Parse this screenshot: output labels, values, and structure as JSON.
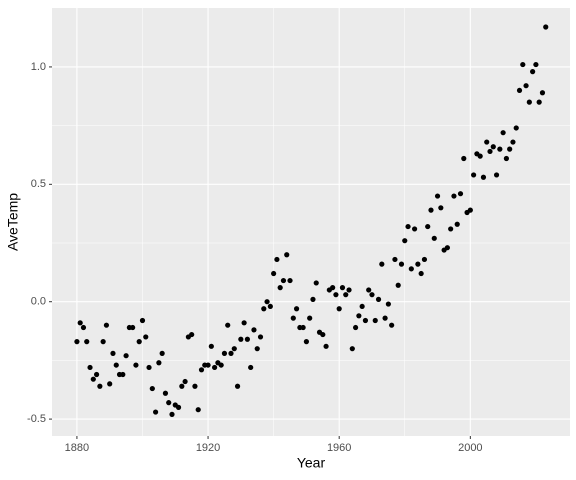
{
  "chart_data": {
    "type": "scatter",
    "x_label": "Year",
    "y_label": "AveTemp",
    "x": [
      1880,
      1881,
      1882,
      1883,
      1884,
      1885,
      1886,
      1887,
      1888,
      1889,
      1890,
      1891,
      1892,
      1893,
      1894,
      1895,
      1896,
      1897,
      1898,
      1899,
      1900,
      1901,
      1902,
      1903,
      1904,
      1905,
      1906,
      1907,
      1908,
      1909,
      1910,
      1911,
      1912,
      1913,
      1914,
      1915,
      1916,
      1917,
      1918,
      1919,
      1920,
      1921,
      1922,
      1923,
      1924,
      1925,
      1926,
      1927,
      1928,
      1929,
      1930,
      1931,
      1932,
      1933,
      1934,
      1935,
      1936,
      1937,
      1938,
      1939,
      1940,
      1941,
      1942,
      1943,
      1944,
      1945,
      1946,
      1947,
      1948,
      1949,
      1950,
      1951,
      1952,
      1953,
      1954,
      1955,
      1956,
      1957,
      1958,
      1959,
      1960,
      1961,
      1962,
      1963,
      1964,
      1965,
      1966,
      1967,
      1968,
      1969,
      1970,
      1971,
      1972,
      1973,
      1974,
      1975,
      1976,
      1977,
      1978,
      1979,
      1980,
      1981,
      1982,
      1983,
      1984,
      1985,
      1986,
      1987,
      1988,
      1989,
      1990,
      1991,
      1992,
      1993,
      1994,
      1995,
      1996,
      1997,
      1998,
      1999,
      2000,
      2001,
      2002,
      2003,
      2004,
      2005,
      2006,
      2007,
      2008,
      2009,
      2010,
      2011,
      2012,
      2013,
      2014,
      2015,
      2016,
      2017,
      2018,
      2019,
      2020,
      2021,
      2022,
      2023
    ],
    "values": [
      -0.17,
      -0.09,
      -0.11,
      -0.17,
      -0.28,
      -0.33,
      -0.31,
      -0.36,
      -0.17,
      -0.1,
      -0.35,
      -0.22,
      -0.27,
      -0.31,
      -0.31,
      -0.23,
      -0.11,
      -0.11,
      -0.27,
      -0.17,
      -0.08,
      -0.15,
      -0.28,
      -0.37,
      -0.47,
      -0.26,
      -0.22,
      -0.39,
      -0.43,
      -0.48,
      -0.44,
      -0.45,
      -0.36,
      -0.34,
      -0.15,
      -0.14,
      -0.36,
      -0.46,
      -0.29,
      -0.27,
      -0.27,
      -0.19,
      -0.28,
      -0.26,
      -0.27,
      -0.22,
      -0.1,
      -0.22,
      -0.2,
      -0.36,
      -0.16,
      -0.09,
      -0.16,
      -0.28,
      -0.12,
      -0.2,
      -0.15,
      -0.03,
      0.0,
      -0.02,
      0.12,
      0.18,
      0.06,
      0.09,
      0.2,
      0.09,
      -0.07,
      -0.03,
      -0.11,
      -0.11,
      -0.17,
      -0.07,
      0.01,
      0.08,
      -0.13,
      -0.14,
      -0.19,
      0.05,
      0.06,
      0.03,
      -0.03,
      0.06,
      0.03,
      0.05,
      -0.2,
      -0.11,
      -0.06,
      -0.02,
      -0.08,
      0.05,
      0.03,
      -0.08,
      0.01,
      0.16,
      -0.07,
      -0.01,
      -0.1,
      0.18,
      0.07,
      0.16,
      0.26,
      0.32,
      0.14,
      0.31,
      0.16,
      0.12,
      0.18,
      0.32,
      0.39,
      0.27,
      0.45,
      0.4,
      0.22,
      0.23,
      0.31,
      0.45,
      0.33,
      0.46,
      0.61,
      0.38,
      0.39,
      0.54,
      0.63,
      0.62,
      0.53,
      0.68,
      0.64,
      0.66,
      0.54,
      0.65,
      0.72,
      0.61,
      0.65,
      0.68,
      0.74,
      0.9,
      1.01,
      0.92,
      0.85,
      0.98,
      1.01,
      0.85,
      0.89,
      1.17
    ],
    "color": "#000000",
    "xlim": [
      1872.4,
      2030.4
    ],
    "xticks": [
      1880,
      1920,
      1960,
      2000
    ],
    "ylim": [
      -0.572,
      1.251
    ],
    "yticks": [
      {
        "value": -0.5,
        "label": "-0.5"
      },
      {
        "value": 0,
        "label": "0.0"
      },
      {
        "value": 0.5,
        "label": "0.5"
      },
      {
        "value": 1,
        "label": "1.0"
      }
    ],
    "grid": true
  }
}
